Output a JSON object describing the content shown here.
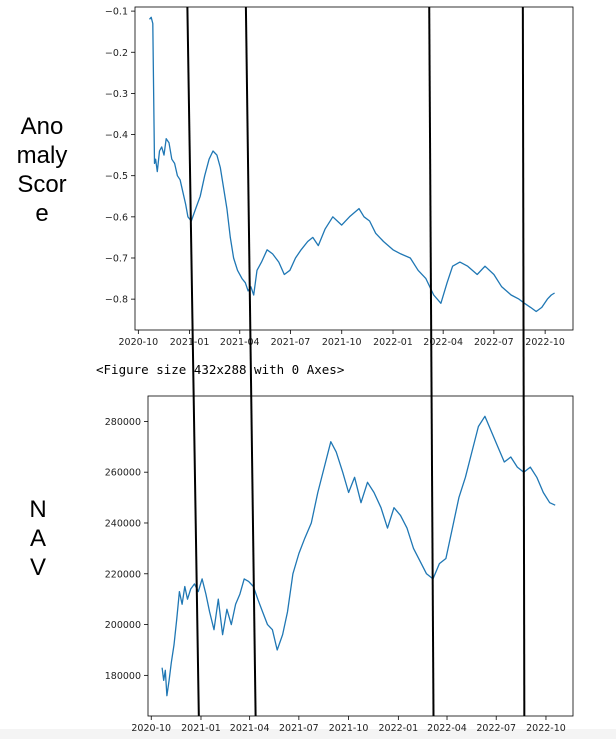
{
  "side_labels": {
    "top": "Ano\nmaly\nScor\ne",
    "bottom": "N\nA\nV"
  },
  "figure_note": "<Figure size 432x288 with 0 Axes>",
  "colors": {
    "line": "#1f77b4",
    "marker_lines": "#000000",
    "axes": "#000000"
  },
  "marker_dates": [
    "2020-12-28",
    "2021-04-12",
    "2022-03-07",
    "2022-08-22"
  ],
  "chart_data": [
    {
      "type": "line",
      "title": "",
      "xlabel": "",
      "ylabel": "",
      "xlim": [
        "2020-09-25",
        "2022-11-20"
      ],
      "ylim": [
        -0.875,
        -0.09
      ],
      "x_ticks": [
        "2020-10",
        "2021-01",
        "2021-04",
        "2021-07",
        "2021-10",
        "2022-01",
        "2022-04",
        "2022-07",
        "2022-10"
      ],
      "y_ticks": [
        -0.1,
        -0.2,
        -0.3,
        -0.4,
        -0.5,
        -0.6,
        -0.7,
        -0.8
      ],
      "grid": false,
      "series": [
        {
          "x": [
            "2020-10-21",
            "2020-10-24",
            "2020-10-27",
            "2020-10-30",
            "2020-11-01",
            "2020-11-04",
            "2020-11-08",
            "2020-11-12",
            "2020-11-16",
            "2020-11-20",
            "2020-11-25",
            "2020-11-30",
            "2020-12-05",
            "2020-12-10",
            "2020-12-15",
            "2020-12-20",
            "2020-12-25",
            "2020-12-29",
            "2021-01-04",
            "2021-01-12",
            "2021-01-20",
            "2021-01-28",
            "2021-02-05",
            "2021-02-12",
            "2021-02-19",
            "2021-02-25",
            "2021-03-03",
            "2021-03-09",
            "2021-03-15",
            "2021-03-21",
            "2021-03-28",
            "2021-04-05",
            "2021-04-11",
            "2021-04-16",
            "2021-04-21",
            "2021-04-26",
            "2021-05-02",
            "2021-05-10",
            "2021-05-20",
            "2021-05-30",
            "2021-06-10",
            "2021-06-20",
            "2021-06-30",
            "2021-07-10",
            "2021-07-20",
            "2021-08-01",
            "2021-08-10",
            "2021-08-20",
            "2021-09-01",
            "2021-09-15",
            "2021-10-01",
            "2021-10-15",
            "2021-11-01",
            "2021-11-10",
            "2021-11-20",
            "2021-12-01",
            "2021-12-15",
            "2022-01-01",
            "2022-01-15",
            "2022-02-01",
            "2022-02-15",
            "2022-03-01",
            "2022-03-15",
            "2022-03-28",
            "2022-04-08",
            "2022-04-18",
            "2022-05-01",
            "2022-05-15",
            "2022-06-01",
            "2022-06-15",
            "2022-07-01",
            "2022-07-15",
            "2022-08-01",
            "2022-08-15",
            "2022-08-25",
            "2022-09-05",
            "2022-09-15",
            "2022-09-25",
            "2022-10-05",
            "2022-10-12",
            "2022-10-18"
          ],
          "y": [
            -0.12,
            -0.115,
            -0.13,
            -0.47,
            -0.46,
            -0.49,
            -0.44,
            -0.43,
            -0.45,
            -0.41,
            -0.42,
            -0.46,
            -0.47,
            -0.5,
            -0.51,
            -0.54,
            -0.57,
            -0.6,
            -0.61,
            -0.58,
            -0.55,
            -0.5,
            -0.46,
            -0.44,
            -0.45,
            -0.48,
            -0.53,
            -0.58,
            -0.65,
            -0.7,
            -0.73,
            -0.75,
            -0.76,
            -0.78,
            -0.77,
            -0.79,
            -0.73,
            -0.71,
            -0.68,
            -0.69,
            -0.71,
            -0.74,
            -0.73,
            -0.7,
            -0.68,
            -0.66,
            -0.65,
            -0.67,
            -0.63,
            -0.6,
            -0.62,
            -0.6,
            -0.58,
            -0.6,
            -0.61,
            -0.64,
            -0.66,
            -0.68,
            -0.69,
            -0.7,
            -0.73,
            -0.75,
            -0.79,
            -0.81,
            -0.76,
            -0.72,
            -0.71,
            -0.72,
            -0.74,
            -0.72,
            -0.74,
            -0.77,
            -0.79,
            -0.8,
            -0.81,
            -0.82,
            -0.83,
            -0.82,
            -0.8,
            -0.79,
            -0.785
          ]
        }
      ]
    },
    {
      "type": "line",
      "title": "",
      "xlabel": "",
      "ylabel": "",
      "xlim": [
        "2020-09-25",
        "2022-11-20"
      ],
      "ylim": [
        164000,
        290000
      ],
      "x_ticks": [
        "2020-10",
        "2021-01",
        "2021-04",
        "2021-07",
        "2021-10",
        "2022-01",
        "2022-04",
        "2022-07",
        "2022-10"
      ],
      "y_ticks": [
        180000,
        200000,
        220000,
        240000,
        260000,
        280000
      ],
      "grid": false,
      "series": [
        {
          "x": [
            "2020-10-21",
            "2020-10-24",
            "2020-10-27",
            "2020-10-30",
            "2020-11-03",
            "2020-11-07",
            "2020-11-12",
            "2020-11-17",
            "2020-11-22",
            "2020-11-27",
            "2020-12-02",
            "2020-12-07",
            "2020-12-13",
            "2020-12-20",
            "2020-12-27",
            "2021-01-03",
            "2021-01-10",
            "2021-01-17",
            "2021-01-25",
            "2021-02-02",
            "2021-02-10",
            "2021-02-18",
            "2021-02-26",
            "2021-03-06",
            "2021-03-14",
            "2021-03-22",
            "2021-03-30",
            "2021-04-08",
            "2021-04-16",
            "2021-04-25",
            "2021-05-04",
            "2021-05-13",
            "2021-05-22",
            "2021-06-01",
            "2021-06-10",
            "2021-06-20",
            "2021-07-01",
            "2021-07-12",
            "2021-07-24",
            "2021-08-05",
            "2021-08-17",
            "2021-08-29",
            "2021-09-08",
            "2021-09-20",
            "2021-10-01",
            "2021-10-12",
            "2021-10-24",
            "2021-11-05",
            "2021-11-17",
            "2021-11-30",
            "2021-12-12",
            "2021-12-24",
            "2022-01-05",
            "2022-01-17",
            "2022-01-29",
            "2022-02-10",
            "2022-02-22",
            "2022-03-06",
            "2022-03-18",
            "2022-03-30",
            "2022-04-11",
            "2022-04-23",
            "2022-05-05",
            "2022-05-17",
            "2022-05-29",
            "2022-06-10",
            "2022-06-22",
            "2022-07-04",
            "2022-07-16",
            "2022-07-28",
            "2022-08-09",
            "2022-08-21",
            "2022-09-02",
            "2022-09-14",
            "2022-09-26",
            "2022-10-08",
            "2022-10-18"
          ],
          "y": [
            183000,
            178000,
            182000,
            172000,
            178000,
            185000,
            192000,
            202000,
            213000,
            208000,
            215000,
            210000,
            214000,
            216000,
            213000,
            218000,
            212000,
            205000,
            198000,
            210000,
            196000,
            206000,
            200000,
            208000,
            212000,
            218000,
            217000,
            215000,
            210000,
            205000,
            200000,
            198000,
            190000,
            196000,
            205000,
            220000,
            228000,
            234000,
            240000,
            252000,
            262000,
            272000,
            268000,
            260000,
            252000,
            258000,
            248000,
            256000,
            252000,
            246000,
            238000,
            246000,
            243000,
            238000,
            230000,
            225000,
            220000,
            218000,
            224000,
            226000,
            238000,
            250000,
            258000,
            268000,
            278000,
            282000,
            276000,
            270000,
            264000,
            266000,
            262000,
            260000,
            262000,
            258000,
            252000,
            248000,
            247000
          ]
        }
      ]
    }
  ]
}
